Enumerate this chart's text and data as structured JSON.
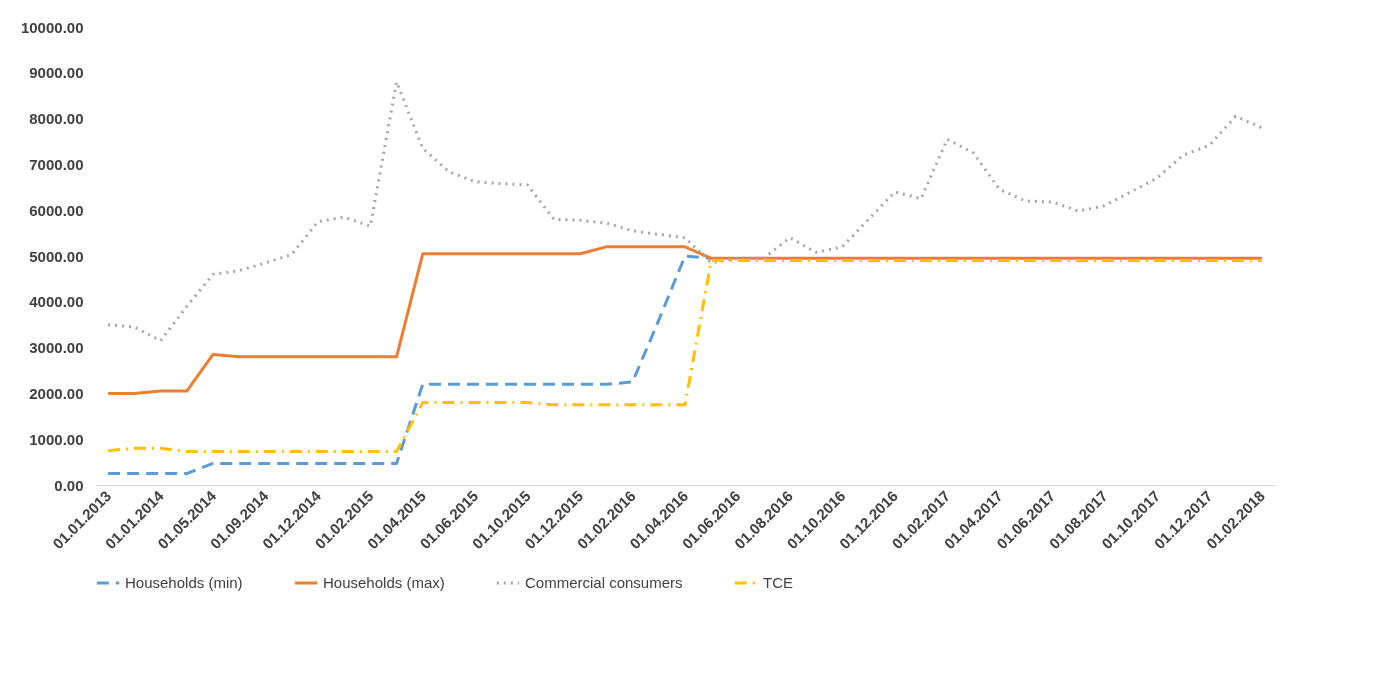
{
  "chart_data": {
    "type": "line",
    "categories": [
      "01.01.2013",
      null,
      "01.01.2014",
      null,
      "01.05.2014",
      null,
      "01.09.2014",
      null,
      "01.12.2014",
      null,
      "01.02.2015",
      null,
      "01.04.2015",
      null,
      "01.06.2015",
      null,
      "01.10.2015",
      null,
      "01.12.2015",
      null,
      "01.02.2016",
      null,
      "01.04.2016",
      null,
      "01.06.2016",
      null,
      "01.08.2016",
      null,
      "01.10.2016",
      null,
      "01.12.2016",
      null,
      "01.02.2017",
      null,
      "01.04.2017",
      null,
      "01.06.2017",
      null,
      "01.08.2017",
      null,
      "01.10.2017",
      null,
      "01.12.2017",
      null,
      "01.02.2018"
    ],
    "series": [
      {
        "name": "Households (min)",
        "color": "#5b9bd5",
        "line_style": "dashed",
        "values": [
          250,
          250,
          250,
          250,
          470,
          470,
          470,
          470,
          470,
          470,
          470,
          470,
          2200,
          2200,
          2200,
          2200,
          2200,
          2200,
          2200,
          2200,
          2250,
          3600,
          5000,
          4950,
          null,
          null,
          null,
          null,
          null,
          null,
          null,
          null,
          null,
          null,
          null,
          null,
          null,
          null,
          null,
          null,
          null,
          null,
          null,
          null,
          null
        ]
      },
      {
        "name": "Households (max)",
        "color": "#ed7d31",
        "line_style": "solid",
        "values": [
          2000,
          2000,
          2050,
          2050,
          2850,
          2800,
          2800,
          2800,
          2800,
          2800,
          2800,
          2800,
          5050,
          5050,
          5050,
          5050,
          5050,
          5050,
          5050,
          5200,
          5200,
          5200,
          5200,
          4950,
          4950,
          4950,
          4950,
          4950,
          4950,
          4950,
          4950,
          4950,
          4950,
          4950,
          4950,
          4950,
          4950,
          4950,
          4950,
          4950,
          4950,
          4950,
          4950,
          4950,
          4950
        ]
      },
      {
        "name": "Commercial consumers",
        "color": "#a5a5a5",
        "line_style": "dotted",
        "values": [
          3500,
          3450,
          3150,
          3900,
          4600,
          4680,
          4850,
          5030,
          5750,
          5850,
          5650,
          8800,
          7350,
          6840,
          6620,
          6580,
          6550,
          5800,
          5780,
          5720,
          5550,
          5470,
          5400,
          4850,
          4950,
          4950,
          5400,
          5080,
          5200,
          5800,
          6400,
          6250,
          7550,
          7250,
          6450,
          6200,
          6180,
          5980,
          6100,
          6400,
          6700,
          7200,
          7420,
          8050,
          7800
        ]
      },
      {
        "name": "TCE",
        "color": "#ffc000",
        "line_style": "dashdot",
        "values": [
          750,
          800,
          800,
          730,
          730,
          730,
          730,
          730,
          730,
          730,
          730,
          730,
          1800,
          1800,
          1800,
          1800,
          1800,
          1750,
          1750,
          1750,
          1750,
          1750,
          1750,
          4900,
          4900,
          4900,
          4900,
          4900,
          4900,
          4900,
          4900,
          4900,
          4900,
          4900,
          4900,
          4900,
          4900,
          4900,
          4900,
          4900,
          4900,
          4900,
          4900,
          4900,
          4900
        ]
      }
    ],
    "ylim": [
      0,
      10000
    ],
    "yticks": [
      {
        "value": 0,
        "label": "0.00"
      },
      {
        "value": 1000,
        "label": "1000.00"
      },
      {
        "value": 2000,
        "label": "2000.00"
      },
      {
        "value": 3000,
        "label": "3000.00"
      },
      {
        "value": 4000,
        "label": "4000.00"
      },
      {
        "value": 5000,
        "label": "5000.00"
      },
      {
        "value": 6000,
        "label": "6000.00"
      },
      {
        "value": 7000,
        "label": "7000.00"
      },
      {
        "value": 8000,
        "label": "8000.00"
      },
      {
        "value": 9000,
        "label": "9000.00"
      },
      {
        "value": 10000,
        "label": "10000.00"
      }
    ],
    "grid": false,
    "legend": "bottom"
  }
}
